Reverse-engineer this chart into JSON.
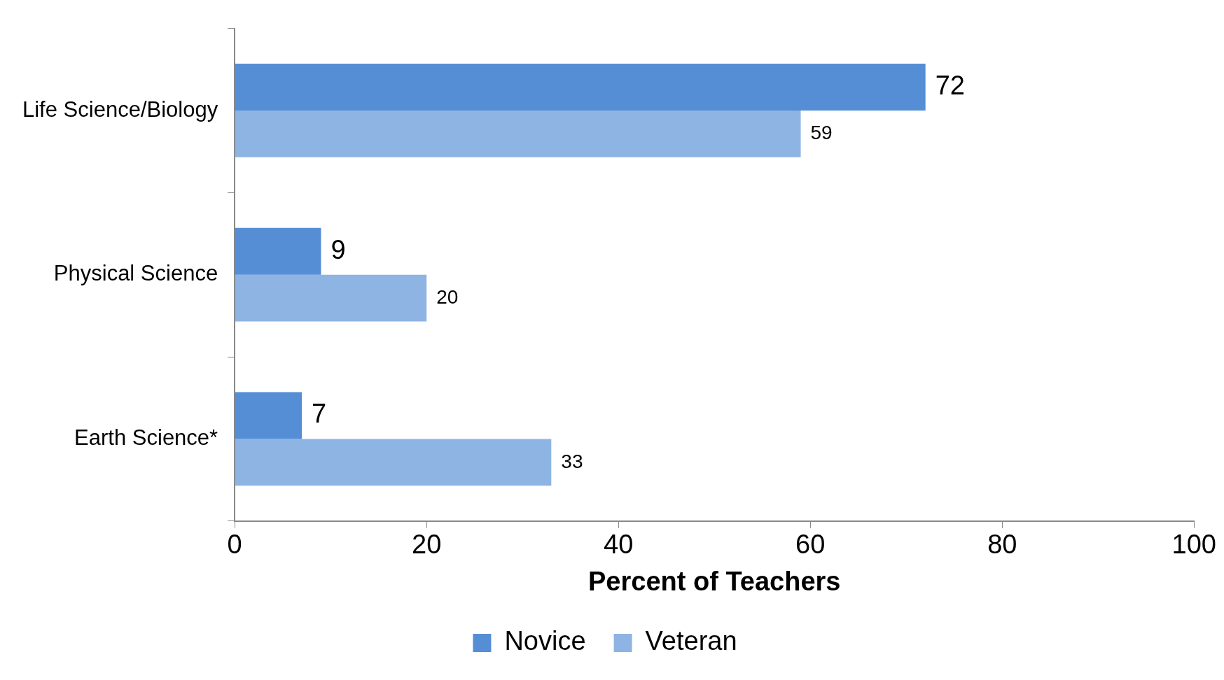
{
  "chart_data": {
    "type": "bar",
    "orientation": "horizontal",
    "xlabel": "Percent of Teachers",
    "categories": [
      "Life Science/Biology",
      "Physical Science",
      "Earth Science*"
    ],
    "series": [
      {
        "name": "Novice",
        "color": "#558ed5",
        "values": [
          72,
          9,
          7
        ]
      },
      {
        "name": "Veteran",
        "color": "#8eb4e3",
        "values": [
          59,
          20,
          33
        ]
      }
    ],
    "xlim": [
      0,
      100
    ],
    "xticks": [
      0,
      20,
      40,
      60,
      80,
      100
    ],
    "data_labels": true,
    "grid": false,
    "legend": "bottom"
  }
}
